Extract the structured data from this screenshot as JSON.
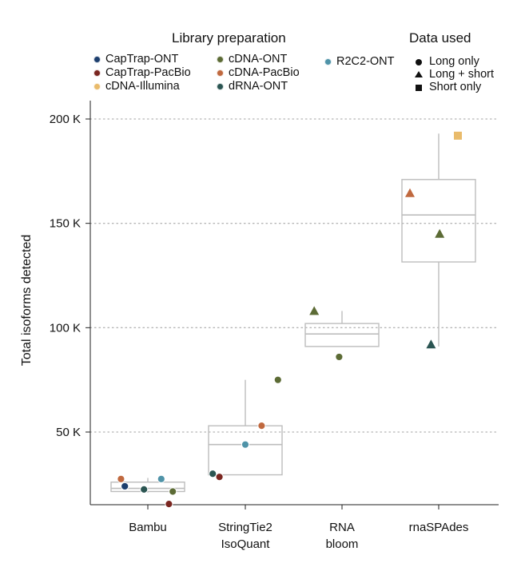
{
  "legend": {
    "library_title": "Library preparation",
    "data_title": "Data used",
    "library_items": [
      {
        "label": "CapTrap-ONT",
        "color": "#1d3f6e"
      },
      {
        "label": "CapTrap-PacBio",
        "color": "#7a2620"
      },
      {
        "label": "cDNA-Illumina",
        "color": "#e9bb6b"
      },
      {
        "label": "cDNA-ONT",
        "color": "#5c6b35"
      },
      {
        "label": "cDNA-PacBio",
        "color": "#c0693f"
      },
      {
        "label": "dRNA-ONT",
        "color": "#2b5552"
      },
      {
        "label": "R2C2-ONT",
        "color": "#4f93a8"
      }
    ],
    "data_items": [
      {
        "label": "Long only",
        "shape": "circle"
      },
      {
        "label": "Long + short",
        "shape": "triangle"
      },
      {
        "label": "Short only",
        "shape": "square"
      }
    ]
  },
  "chart_data": {
    "type": "box",
    "ylabel": "Total isoforms detected",
    "xlabel": "",
    "ylim": [
      15000,
      210000
    ],
    "yticks": [
      {
        "value": 50000,
        "label": "50 K"
      },
      {
        "value": 100000,
        "label": "100 K"
      },
      {
        "value": 150000,
        "label": "150 K"
      },
      {
        "value": 200000,
        "label": "200 K"
      }
    ],
    "grid": "horizontal dotted",
    "categories": [
      {
        "label": [
          "Bambu"
        ]
      },
      {
        "label": [
          "StringTie2",
          "IsoQuant"
        ]
      },
      {
        "label": [
          "RNA",
          "bloom"
        ]
      },
      {
        "label": [
          "rnaSPAdes"
        ]
      }
    ],
    "boxes": [
      {
        "whisker_low": 21000,
        "q1": 21500,
        "median": 23000,
        "q3": 26000,
        "whisker_high": 28000
      },
      {
        "whisker_low": 29500,
        "q1": 29500,
        "median": 44000,
        "q3": 53000,
        "whisker_high": 75000
      },
      {
        "whisker_low": 91000,
        "q1": 91000,
        "median": 97000,
        "q3": 102000,
        "whisker_high": 108000
      },
      {
        "whisker_low": 91000,
        "q1": 131500,
        "median": 154000,
        "q3": 171000,
        "whisker_high": 193000
      }
    ],
    "points": [
      {
        "category": 0,
        "offset": -0.28,
        "y": 27500,
        "library": "cDNA-PacBio",
        "data": "Long only"
      },
      {
        "category": 0,
        "offset": -0.24,
        "y": 24000,
        "library": "CapTrap-ONT",
        "data": "Long only"
      },
      {
        "category": 0,
        "offset": -0.04,
        "y": 22500,
        "library": "dRNA-ONT",
        "data": "Long only"
      },
      {
        "category": 0,
        "offset": 0.14,
        "y": 27500,
        "library": "R2C2-ONT",
        "data": "Long only"
      },
      {
        "category": 0,
        "offset": 0.26,
        "y": 21500,
        "library": "cDNA-ONT",
        "data": "Long only"
      },
      {
        "category": 0,
        "offset": 0.22,
        "y": 15500,
        "library": "CapTrap-PacBio",
        "data": "Long only"
      },
      {
        "category": 1,
        "offset": -0.34,
        "y": 30000,
        "library": "dRNA-ONT",
        "data": "Long only"
      },
      {
        "category": 1,
        "offset": -0.27,
        "y": 28500,
        "library": "CapTrap-PacBio",
        "data": "Long only"
      },
      {
        "category": 1,
        "offset": 0.0,
        "y": 44000,
        "library": "R2C2-ONT",
        "data": "Long only"
      },
      {
        "category": 1,
        "offset": 0.17,
        "y": 53000,
        "library": "cDNA-PacBio",
        "data": "Long only"
      },
      {
        "category": 1,
        "offset": 0.34,
        "y": 75000,
        "library": "cDNA-ONT",
        "data": "Long only"
      },
      {
        "category": 2,
        "offset": -0.29,
        "y": 108000,
        "library": "cDNA-ONT",
        "data": "Long + short"
      },
      {
        "category": 2,
        "offset": -0.03,
        "y": 86000,
        "library": "cDNA-ONT",
        "data": "Long only"
      },
      {
        "category": 3,
        "offset": -0.3,
        "y": 164500,
        "library": "cDNA-PacBio",
        "data": "Long + short"
      },
      {
        "category": 3,
        "offset": 0.01,
        "y": 145000,
        "library": "cDNA-ONT",
        "data": "Long + short"
      },
      {
        "category": 3,
        "offset": -0.08,
        "y": 92000,
        "library": "dRNA-ONT",
        "data": "Long + short"
      },
      {
        "category": 3,
        "offset": 0.2,
        "y": 192000,
        "library": "cDNA-Illumina",
        "data": "Short only"
      }
    ]
  }
}
